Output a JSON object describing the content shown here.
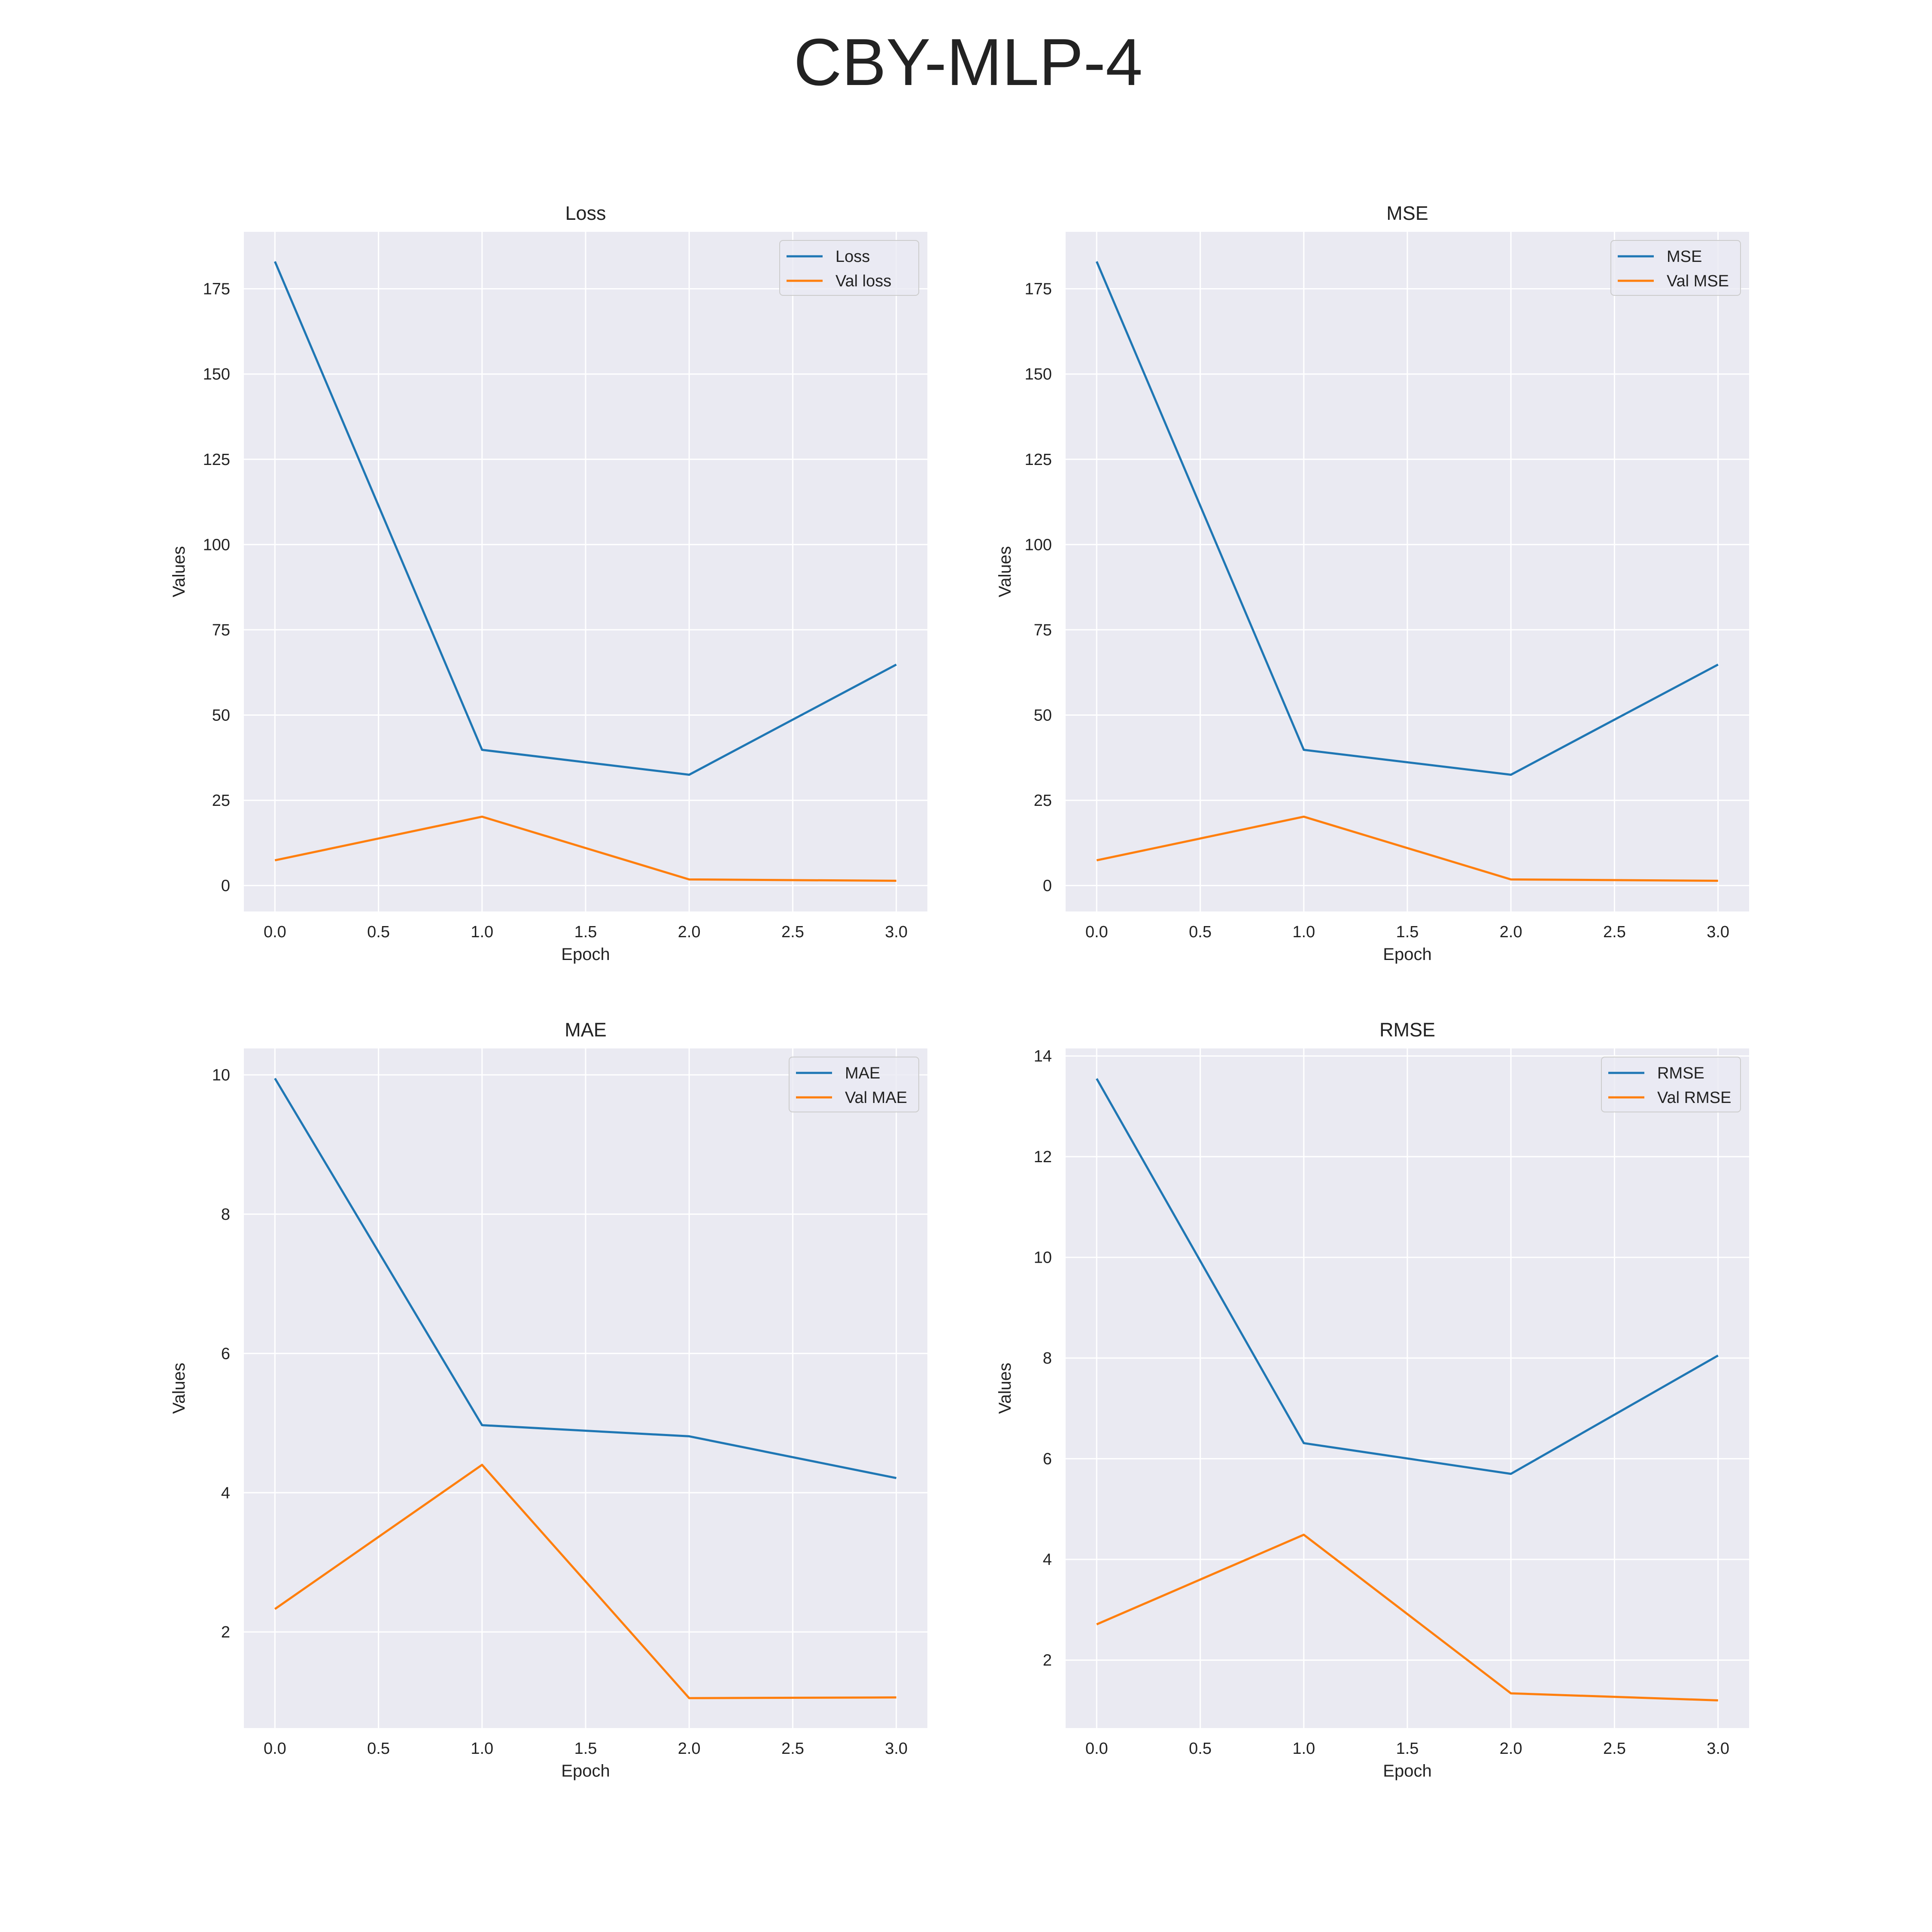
{
  "title": "CBY-MLP-4",
  "colors": {
    "train": "#1f77b4",
    "val": "#ff7f0e",
    "panel_bg": "#eaeaf2",
    "grid": "#ffffff"
  },
  "chart_data": [
    {
      "type": "line",
      "title": "Loss",
      "xlabel": "Epoch",
      "ylabel": "Values",
      "x": [
        0,
        1,
        2,
        3
      ],
      "xlim": [
        -0.15,
        3.15
      ],
      "xticks": [
        0.0,
        0.5,
        1.0,
        1.5,
        2.0,
        2.5,
        3.0
      ],
      "xtick_labels": [
        "0.0",
        "0.5",
        "1.0",
        "1.5",
        "2.0",
        "2.5",
        "3.0"
      ],
      "ylim": [
        -7.6,
        191.7
      ],
      "yticks": [
        0,
        25,
        50,
        75,
        100,
        125,
        150,
        175
      ],
      "ytick_labels": [
        "0",
        "25",
        "50",
        "75",
        "100",
        "125",
        "150",
        "175"
      ],
      "grid": true,
      "legend": "top-right",
      "series": [
        {
          "name": "Loss",
          "values": [
            183.0,
            39.8,
            32.5,
            64.8
          ]
        },
        {
          "name": "Val loss",
          "values": [
            7.4,
            20.2,
            1.8,
            1.4
          ]
        }
      ]
    },
    {
      "type": "line",
      "title": "MSE",
      "xlabel": "Epoch",
      "ylabel": "Values",
      "x": [
        0,
        1,
        2,
        3
      ],
      "xlim": [
        -0.15,
        3.15
      ],
      "xticks": [
        0.0,
        0.5,
        1.0,
        1.5,
        2.0,
        2.5,
        3.0
      ],
      "xtick_labels": [
        "0.0",
        "0.5",
        "1.0",
        "1.5",
        "2.0",
        "2.5",
        "3.0"
      ],
      "ylim": [
        -7.6,
        191.7
      ],
      "yticks": [
        0,
        25,
        50,
        75,
        100,
        125,
        150,
        175
      ],
      "ytick_labels": [
        "0",
        "25",
        "50",
        "75",
        "100",
        "125",
        "150",
        "175"
      ],
      "grid": true,
      "legend": "top-right",
      "series": [
        {
          "name": "MSE",
          "values": [
            183.0,
            39.8,
            32.5,
            64.8
          ]
        },
        {
          "name": "Val MSE",
          "values": [
            7.4,
            20.2,
            1.8,
            1.4
          ]
        }
      ]
    },
    {
      "type": "line",
      "title": "MAE",
      "xlabel": "Epoch",
      "ylabel": "Values",
      "x": [
        0,
        1,
        2,
        3
      ],
      "xlim": [
        -0.15,
        3.15
      ],
      "xticks": [
        0.0,
        0.5,
        1.0,
        1.5,
        2.0,
        2.5,
        3.0
      ],
      "xtick_labels": [
        "0.0",
        "0.5",
        "1.0",
        "1.5",
        "2.0",
        "2.5",
        "3.0"
      ],
      "ylim": [
        0.62,
        10.38
      ],
      "yticks": [
        2,
        4,
        6,
        8,
        10
      ],
      "ytick_labels": [
        "2",
        "4",
        "6",
        "8",
        "10"
      ],
      "grid": true,
      "legend": "top-right",
      "series": [
        {
          "name": "MAE",
          "values": [
            9.95,
            4.97,
            4.81,
            4.21
          ]
        },
        {
          "name": "Val MAE",
          "values": [
            2.33,
            4.4,
            1.05,
            1.06
          ]
        }
      ]
    },
    {
      "type": "line",
      "title": "RMSE",
      "xlabel": "Epoch",
      "ylabel": "Values",
      "x": [
        0,
        1,
        2,
        3
      ],
      "xlim": [
        -0.15,
        3.15
      ],
      "xticks": [
        0.0,
        0.5,
        1.0,
        1.5,
        2.0,
        2.5,
        3.0
      ],
      "xtick_labels": [
        "0.0",
        "0.5",
        "1.0",
        "1.5",
        "2.0",
        "2.5",
        "3.0"
      ],
      "ylim": [
        0.65,
        14.15
      ],
      "yticks": [
        2,
        4,
        6,
        8,
        10,
        12,
        14
      ],
      "ytick_labels": [
        "2",
        "4",
        "6",
        "8",
        "10",
        "12",
        "14"
      ],
      "grid": true,
      "legend": "top-right",
      "series": [
        {
          "name": "RMSE",
          "values": [
            13.55,
            6.31,
            5.7,
            8.05
          ]
        },
        {
          "name": "Val RMSE",
          "values": [
            2.71,
            4.49,
            1.34,
            1.2
          ]
        }
      ]
    }
  ]
}
